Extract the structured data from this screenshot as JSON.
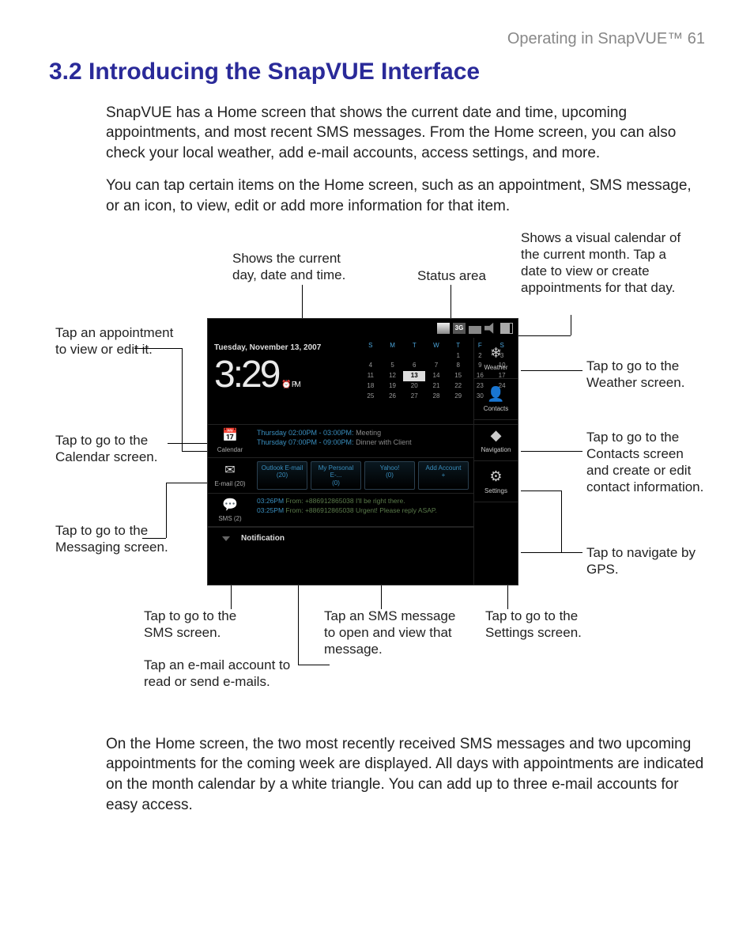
{
  "page": {
    "running_head": "Operating in SnapVUE™  61",
    "title": "3.2  Introducing the SnapVUE Interface",
    "p1": "SnapVUE has a Home screen that shows the current date and time, upcoming appointments, and most recent SMS messages. From the Home screen, you can also check your local weather, add e-mail accounts, access settings, and more.",
    "p2": "You can tap certain items on the Home screen, such as an appointment, SMS message, or an icon, to view, edit or add more information for that item.",
    "p3": "On the Home screen, the two most recently received SMS messages and two upcoming appointments for the coming week are displayed. All days with appointments are indicated on the month calendar by a white triangle. You can add up to three e-mail accounts for easy access."
  },
  "callouts": {
    "c1": "Shows the current day, date and time.",
    "c2": "Status area",
    "c3": "Shows a visual calendar of the current month. Tap a date to view or create appointments for that day.",
    "c4": "Tap an appointment to view or edit it.",
    "c5": "Tap to go to the Calendar screen.",
    "c6": "Tap to go to the Messaging screen.",
    "c7": "Tap to go to the SMS screen.",
    "c8": "Tap an e-mail account to read or send e-mails.",
    "c9": "Tap an SMS message to open and view that message.",
    "c10": "Tap to go to the Settings screen.",
    "c11": "Tap to go to the Weather screen.",
    "c12": "Tap to go to the Contacts screen and create or edit contact information.",
    "c13": "Tap to navigate by GPS."
  },
  "device": {
    "date_line": "Tuesday, November 13, 2007",
    "clock": "3:29",
    "ampm": "PM",
    "status": {
      "g3": "3G"
    },
    "minical": {
      "dow": [
        "S",
        "M",
        "T",
        "W",
        "T",
        "F",
        "S"
      ],
      "rows": [
        [
          "",
          "",
          "",
          "",
          "1",
          "2",
          "3"
        ],
        [
          "4",
          "5",
          "6",
          "7",
          "8",
          "9",
          "10"
        ],
        [
          "11",
          "12",
          "13",
          "14",
          "15",
          "16",
          "17"
        ],
        [
          "18",
          "19",
          "20",
          "21",
          "22",
          "23",
          "24"
        ],
        [
          "25",
          "26",
          "27",
          "28",
          "29",
          "30",
          ""
        ]
      ],
      "today": "13"
    },
    "side": {
      "weather": "Weather",
      "contacts": "Contacts",
      "navigation": "Navigation",
      "settings": "Settings"
    },
    "rows": {
      "calendar_label": "Calendar",
      "appt1_time": "Thursday  02:00PM - 03:00PM:",
      "appt1_text": " Meeting",
      "appt2_time": "Thursday  07:00PM - 09:00PM:",
      "appt2_text": " Dinner with Client",
      "email_label": "E-mail (20)",
      "etab1a": "Outlook E-mail",
      "etab1b": "(20)",
      "etab2a": "My Personal E-...",
      "etab2b": "(0)",
      "etab3a": "Yahoo!",
      "etab3b": "(0)",
      "etab4a": "Add Account",
      "etab4b": "+",
      "sms_label": "SMS (2)",
      "sms1_t": "03:26PM",
      "sms1": " From: +886912865038 I'll be right there.",
      "sms2_t": "03:25PM",
      "sms2": " From: +886912865038 Urgent! Please reply ASAP.",
      "notification": "Notification"
    }
  }
}
